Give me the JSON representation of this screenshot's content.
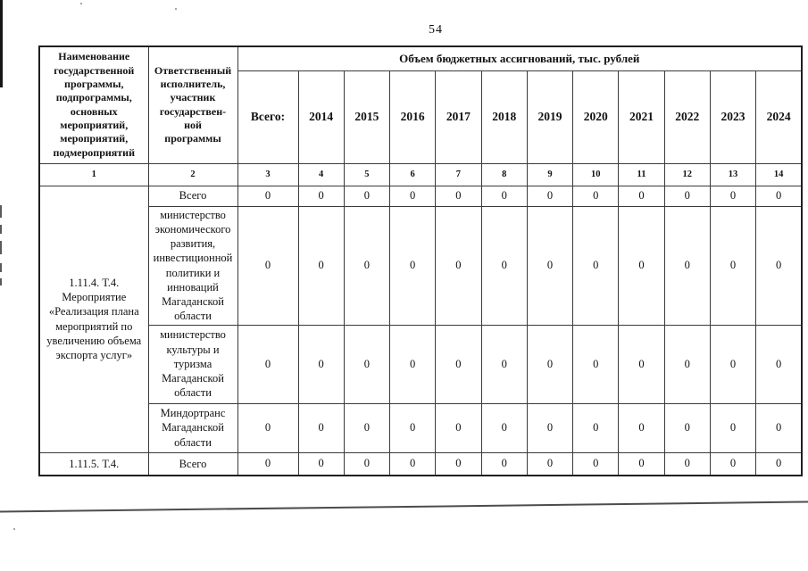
{
  "page": {
    "number": "54"
  },
  "table": {
    "header": {
      "program_col": "Наименование\nгосударственной\nпрограммы,\nподпрограммы,\nосновных\nмероприятий,\nмероприятий,\nподмероприятий",
      "executor_col": "Ответственный\nисполнитель,\nучастник\nгосударствен-\nной\nпрограммы",
      "budget_span": "Объем бюджетных ассигнований, тыс. рублей",
      "value_columns": [
        "Всего:",
        "2014",
        "2015",
        "2016",
        "2017",
        "2018",
        "2019",
        "2020",
        "2021",
        "2022",
        "2023",
        "2024"
      ],
      "index_numbers": [
        "1",
        "2",
        "3",
        "4",
        "5",
        "6",
        "7",
        "8",
        "9",
        "10",
        "11",
        "12",
        "13",
        "14"
      ]
    },
    "rows": [
      {
        "program": "1.11.4. Т.4.\nМероприятие\n«Реализация плана\nмероприятий по\nувеличению объема\nэкспорта услуг»",
        "executor": "Всего",
        "values": [
          "0",
          "0",
          "0",
          "0",
          "0",
          "0",
          "0",
          "0",
          "0",
          "0",
          "0",
          "0"
        ]
      },
      {
        "executor": "министерство\nэкономического\nразвития,\nинвестиционной\nполитики и\nинноваций\nМагаданской\nобласти",
        "values": [
          "0",
          "0",
          "0",
          "0",
          "0",
          "0",
          "0",
          "0",
          "0",
          "0",
          "0",
          "0"
        ]
      },
      {
        "executor": "министерство\nкультуры и\nтуризма\nМагаданской\nобласти",
        "values": [
          "0",
          "0",
          "0",
          "0",
          "0",
          "0",
          "0",
          "0",
          "0",
          "0",
          "0",
          "0"
        ]
      },
      {
        "executor": "Миндортранс\nМагаданской\nобласти",
        "values": [
          "0",
          "0",
          "0",
          "0",
          "0",
          "0",
          "0",
          "0",
          "0",
          "0",
          "0",
          "0"
        ]
      },
      {
        "program": "1.11.5. Т.4.",
        "executor": "Всего",
        "values": [
          "0",
          "0",
          "0",
          "0",
          "0",
          "0",
          "0",
          "0",
          "0",
          "0",
          "0",
          "0"
        ]
      }
    ]
  }
}
